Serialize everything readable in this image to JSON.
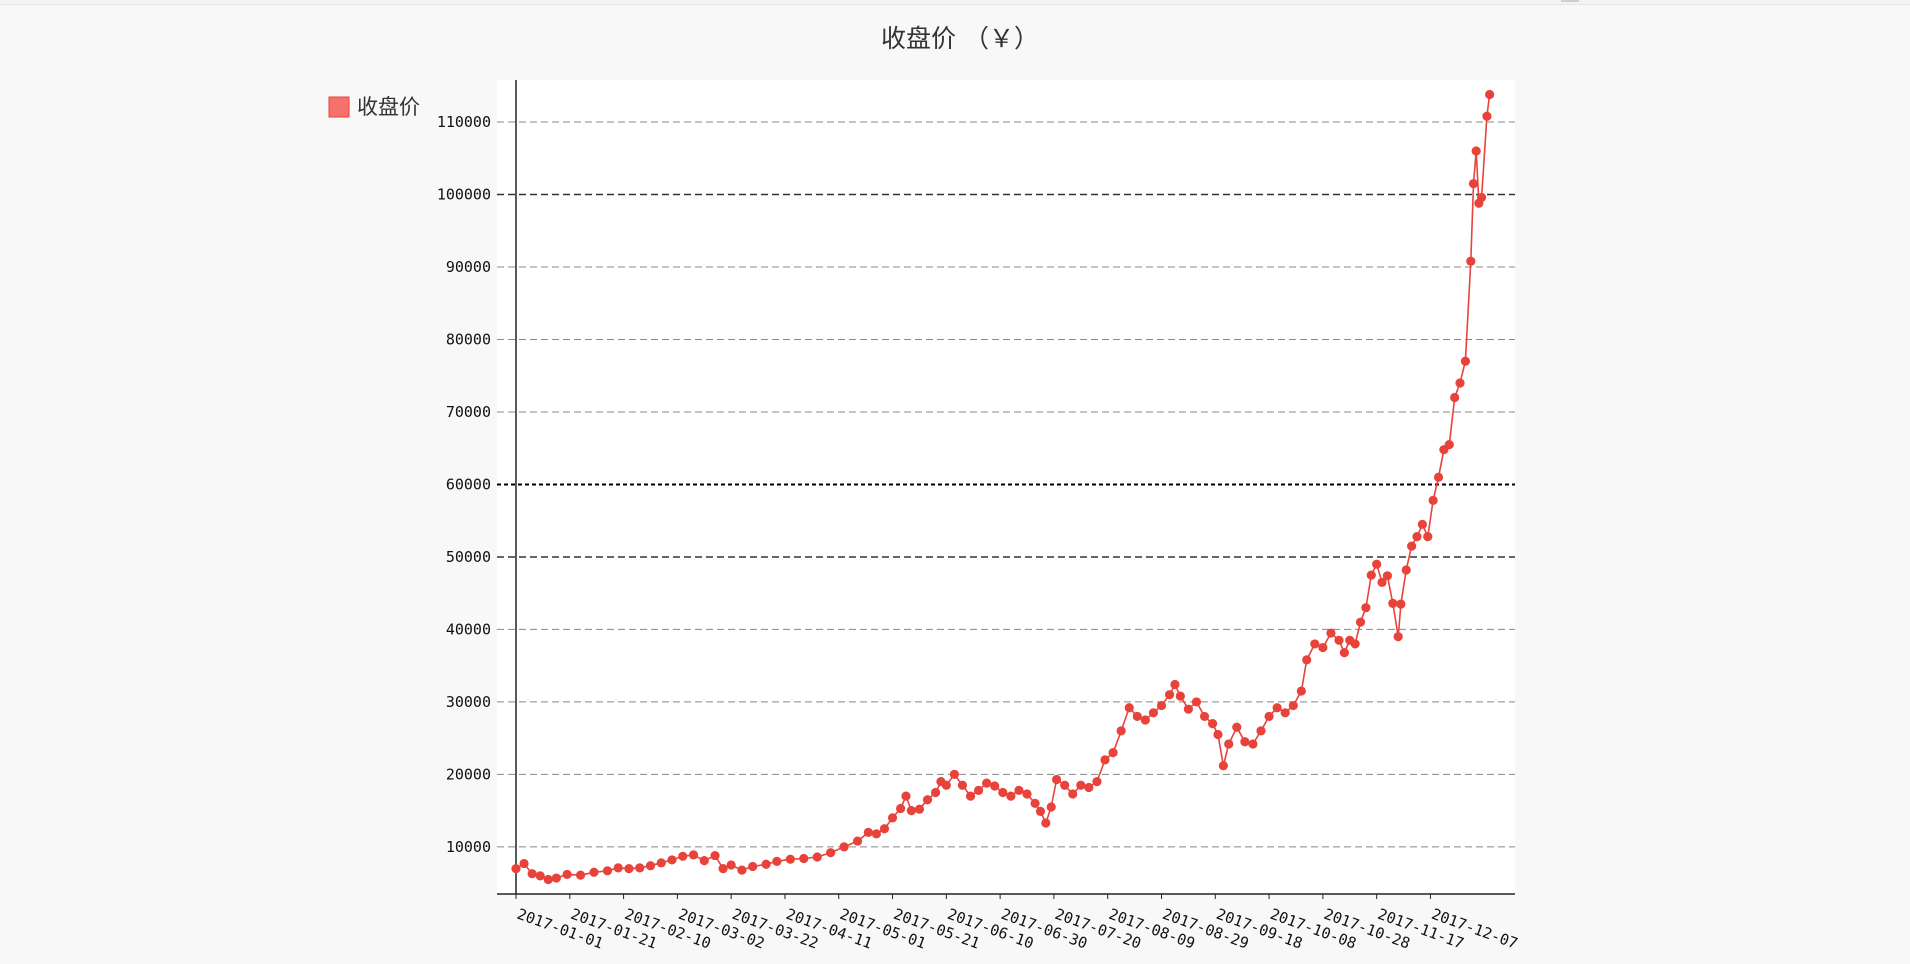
{
  "chart_data": {
    "type": "line",
    "title": "收盘价 （￥）",
    "xlabel": "",
    "ylabel": "",
    "ylim": [
      3500,
      115800
    ],
    "yticks": [
      10000,
      20000,
      30000,
      40000,
      50000,
      60000,
      70000,
      80000,
      90000,
      100000,
      110000
    ],
    "x_tick_labels": [
      "2017-01-01",
      "2017-01-21",
      "2017-02-10",
      "2017-03-02",
      "2017-03-22",
      "2017-04-11",
      "2017-05-01",
      "2017-05-21",
      "2017-06-10",
      "2017-06-30",
      "2017-07-20",
      "2017-08-09",
      "2017-08-29",
      "2017-09-18",
      "2017-10-08",
      "2017-10-28",
      "2017-11-17",
      "2017-12-07"
    ],
    "x_start": "2017-01-01",
    "x_end": "2017-12-31",
    "grid": true,
    "legend_position": "top-left",
    "colors": {
      "series": "#e8433a",
      "legend_fill": "#f5716b",
      "legend_stroke": "#e8433a",
      "axis": "#222222",
      "grid": "#888888",
      "background": "#ffffff"
    },
    "series": [
      {
        "name": "收盘价",
        "points": [
          [
            "2017-01-01",
            7000
          ],
          [
            "2017-01-04",
            7700
          ],
          [
            "2017-01-07",
            6300
          ],
          [
            "2017-01-10",
            6000
          ],
          [
            "2017-01-13",
            5500
          ],
          [
            "2017-01-16",
            5700
          ],
          [
            "2017-01-20",
            6200
          ],
          [
            "2017-01-25",
            6100
          ],
          [
            "2017-01-30",
            6500
          ],
          [
            "2017-02-04",
            6700
          ],
          [
            "2017-02-08",
            7100
          ],
          [
            "2017-02-12",
            7000
          ],
          [
            "2017-02-16",
            7100
          ],
          [
            "2017-02-20",
            7400
          ],
          [
            "2017-02-24",
            7800
          ],
          [
            "2017-02-28",
            8200
          ],
          [
            "2017-03-04",
            8700
          ],
          [
            "2017-03-08",
            8900
          ],
          [
            "2017-03-12",
            8100
          ],
          [
            "2017-03-16",
            8800
          ],
          [
            "2017-03-19",
            7000
          ],
          [
            "2017-03-22",
            7500
          ],
          [
            "2017-03-26",
            6800
          ],
          [
            "2017-03-30",
            7300
          ],
          [
            "2017-04-04",
            7600
          ],
          [
            "2017-04-08",
            8000
          ],
          [
            "2017-04-13",
            8300
          ],
          [
            "2017-04-18",
            8400
          ],
          [
            "2017-04-23",
            8600
          ],
          [
            "2017-04-28",
            9200
          ],
          [
            "2017-05-03",
            10000
          ],
          [
            "2017-05-08",
            10800
          ],
          [
            "2017-05-12",
            12000
          ],
          [
            "2017-05-15",
            11800
          ],
          [
            "2017-05-18",
            12500
          ],
          [
            "2017-05-21",
            14000
          ],
          [
            "2017-05-24",
            15300
          ],
          [
            "2017-05-26",
            17000
          ],
          [
            "2017-05-28",
            15000
          ],
          [
            "2017-05-31",
            15200
          ],
          [
            "2017-06-03",
            16500
          ],
          [
            "2017-06-06",
            17500
          ],
          [
            "2017-06-08",
            19000
          ],
          [
            "2017-06-10",
            18500
          ],
          [
            "2017-06-13",
            20000
          ],
          [
            "2017-06-16",
            18500
          ],
          [
            "2017-06-19",
            17000
          ],
          [
            "2017-06-22",
            17800
          ],
          [
            "2017-06-25",
            18800
          ],
          [
            "2017-06-28",
            18400
          ],
          [
            "2017-07-01",
            17500
          ],
          [
            "2017-07-04",
            17000
          ],
          [
            "2017-07-07",
            17800
          ],
          [
            "2017-07-10",
            17300
          ],
          [
            "2017-07-13",
            16000
          ],
          [
            "2017-07-15",
            14900
          ],
          [
            "2017-07-17",
            13300
          ],
          [
            "2017-07-19",
            15500
          ],
          [
            "2017-07-21",
            19300
          ],
          [
            "2017-07-24",
            18500
          ],
          [
            "2017-07-27",
            17300
          ],
          [
            "2017-07-30",
            18500
          ],
          [
            "2017-08-02",
            18200
          ],
          [
            "2017-08-05",
            19000
          ],
          [
            "2017-08-08",
            22000
          ],
          [
            "2017-08-11",
            23000
          ],
          [
            "2017-08-14",
            26000
          ],
          [
            "2017-08-17",
            29200
          ],
          [
            "2017-08-20",
            28000
          ],
          [
            "2017-08-23",
            27500
          ],
          [
            "2017-08-26",
            28500
          ],
          [
            "2017-08-29",
            29500
          ],
          [
            "2017-09-01",
            31000
          ],
          [
            "2017-09-03",
            32400
          ],
          [
            "2017-09-05",
            30800
          ],
          [
            "2017-09-08",
            29000
          ],
          [
            "2017-09-11",
            30000
          ],
          [
            "2017-09-14",
            28000
          ],
          [
            "2017-09-17",
            27000
          ],
          [
            "2017-09-19",
            25500
          ],
          [
            "2017-09-21",
            21200
          ],
          [
            "2017-09-23",
            24200
          ],
          [
            "2017-09-26",
            26500
          ],
          [
            "2017-09-29",
            24500
          ],
          [
            "2017-10-02",
            24200
          ],
          [
            "2017-10-05",
            26000
          ],
          [
            "2017-10-08",
            28000
          ],
          [
            "2017-10-11",
            29200
          ],
          [
            "2017-10-14",
            28500
          ],
          [
            "2017-10-17",
            29500
          ],
          [
            "2017-10-20",
            31500
          ],
          [
            "2017-10-22",
            35800
          ],
          [
            "2017-10-25",
            38000
          ],
          [
            "2017-10-28",
            37500
          ],
          [
            "2017-10-31",
            39500
          ],
          [
            "2017-11-03",
            38500
          ],
          [
            "2017-11-05",
            36800
          ],
          [
            "2017-11-07",
            38500
          ],
          [
            "2017-11-09",
            38000
          ],
          [
            "2017-11-11",
            41000
          ],
          [
            "2017-11-13",
            43000
          ],
          [
            "2017-11-15",
            47500
          ],
          [
            "2017-11-17",
            49000
          ],
          [
            "2017-11-19",
            46500
          ],
          [
            "2017-11-21",
            47400
          ],
          [
            "2017-11-23",
            43600
          ],
          [
            "2017-11-25",
            39000
          ],
          [
            "2017-11-26",
            43500
          ],
          [
            "2017-11-28",
            48200
          ],
          [
            "2017-11-30",
            51500
          ],
          [
            "2017-12-02",
            52800
          ],
          [
            "2017-12-04",
            54500
          ],
          [
            "2017-12-06",
            52800
          ],
          [
            "2017-12-08",
            57800
          ],
          [
            "2017-12-10",
            61000
          ],
          [
            "2017-12-12",
            64800
          ],
          [
            "2017-12-14",
            65500
          ],
          [
            "2017-12-16",
            72000
          ],
          [
            "2017-12-18",
            74000
          ],
          [
            "2017-12-20",
            77000
          ],
          [
            "2017-12-22",
            90800
          ],
          [
            "2017-12-23",
            101500
          ],
          [
            "2017-12-24",
            106000
          ],
          [
            "2017-12-25",
            98800
          ],
          [
            "2017-12-26",
            99600
          ],
          [
            "2017-12-28",
            110800
          ],
          [
            "2017-12-29",
            113800
          ]
        ]
      }
    ]
  }
}
